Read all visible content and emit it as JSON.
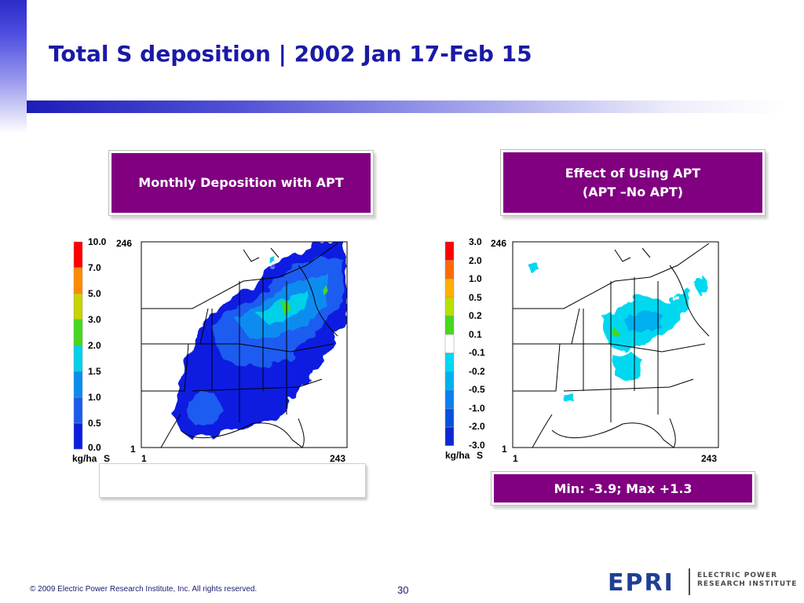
{
  "slide": {
    "title": "Total S deposition | 2002 Jan 17-Feb 15",
    "page_number": "30",
    "copyright": "© 2009 Electric Power Research Institute, Inc. All rights reserved."
  },
  "logo": {
    "wordmark": "EPRI",
    "line1": "ELECTRIC POWER",
    "line2": "RESEARCH INSTITUTE"
  },
  "colors": {
    "title": "#1a1aa6",
    "header_box": "#800080",
    "logo_blue": "#1e3f94"
  },
  "left_panel": {
    "header": "Monthly Deposition with APT",
    "map": {
      "unit_label": "kg/ha",
      "species_label": "S",
      "grid_top_label": "246",
      "grid_bottom_label": "1",
      "grid_left_label": "1",
      "grid_right_label": "243",
      "legend": [
        {
          "label": "10.0",
          "color": "#ff0000"
        },
        {
          "label": "7.0",
          "color": "#ff8a00"
        },
        {
          "label": "5.0",
          "color": "#c8d400"
        },
        {
          "label": "3.0",
          "color": "#46d81a"
        },
        {
          "label": "2.0",
          "color": "#00d0e8"
        },
        {
          "label": "1.5",
          "color": "#0a8cf0"
        },
        {
          "label": "1.0",
          "color": "#1a5cf0"
        },
        {
          "label": "0.5",
          "color": "#0a1ee0"
        },
        {
          "label": "0.0",
          "color": "#ffffff"
        }
      ]
    }
  },
  "right_panel": {
    "header_line1": "Effect of Using APT",
    "header_line2": "(APT –No APT)",
    "stats": "Min: -3.9; Max +1.3",
    "map": {
      "unit_label": "kg/ha",
      "species_label": "S",
      "grid_top_label": "246",
      "grid_bottom_label": "1",
      "grid_left_label": "1",
      "grid_right_label": "243",
      "legend": [
        {
          "label": "3.0",
          "color": "#ff0000"
        },
        {
          "label": "2.0",
          "color": "#ff6a00"
        },
        {
          "label": "1.0",
          "color": "#ffb000"
        },
        {
          "label": "0.5",
          "color": "#b8e000"
        },
        {
          "label": "0.2",
          "color": "#46d81a"
        },
        {
          "label": "0.1",
          "color": "#ffffff"
        },
        {
          "label": "-0.1",
          "color": "#00d8f0"
        },
        {
          "label": "-0.2",
          "color": "#00b0f0"
        },
        {
          "label": "-0.5",
          "color": "#0a80f0"
        },
        {
          "label": "-1.0",
          "color": "#0a50e0"
        },
        {
          "label": "-2.0",
          "color": "#0a28d8"
        },
        {
          "label": "-3.0",
          "color": ""
        }
      ]
    }
  }
}
